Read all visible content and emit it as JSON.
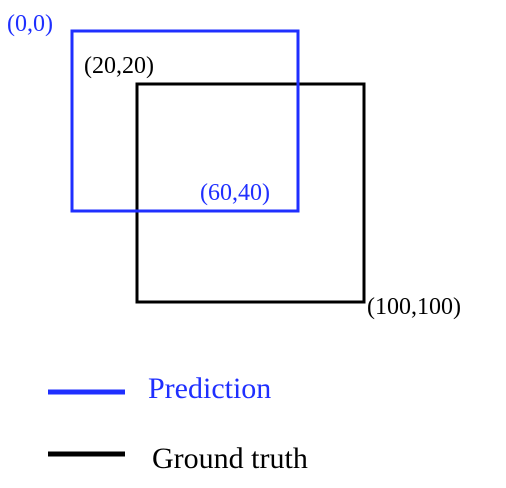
{
  "colors": {
    "prediction": "#1f2fff",
    "ground_truth": "#000000",
    "background": "#ffffff"
  },
  "boxes": {
    "prediction": {
      "top_left_label": "(0,0)",
      "bottom_right_label": "(60,40)"
    },
    "ground_truth": {
      "top_left_label": "(20,20)",
      "bottom_right_label": "(100,100)"
    }
  },
  "legend": {
    "prediction_label": "Prediction",
    "ground_truth_label": "Ground truth"
  }
}
